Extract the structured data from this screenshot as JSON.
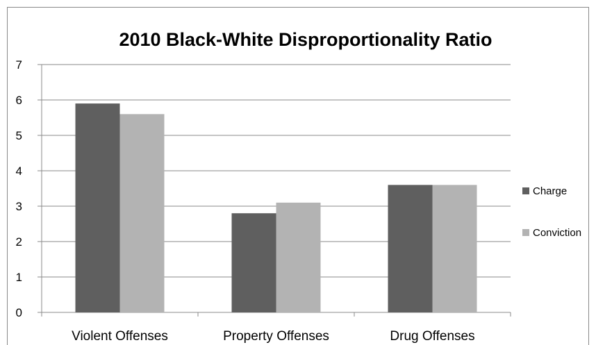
{
  "chart_data": {
    "type": "bar",
    "title": "2010 Black-White Disproportionality Ratio",
    "categories": [
      "Violent Offenses",
      "Property Offenses",
      "Drug Offenses"
    ],
    "series": [
      {
        "name": "Charge",
        "values": [
          5.9,
          2.8,
          3.6
        ],
        "color": "#5f5f5f"
      },
      {
        "name": "Conviction",
        "values": [
          5.6,
          3.1,
          3.6
        ],
        "color": "#b3b3b3"
      }
    ],
    "ylim": [
      0,
      7
    ],
    "yticks": [
      "0",
      "1",
      "2",
      "3",
      "4",
      "5",
      "6",
      "7"
    ],
    "grid": true,
    "legend": "right",
    "xlabel": "",
    "ylabel": ""
  }
}
